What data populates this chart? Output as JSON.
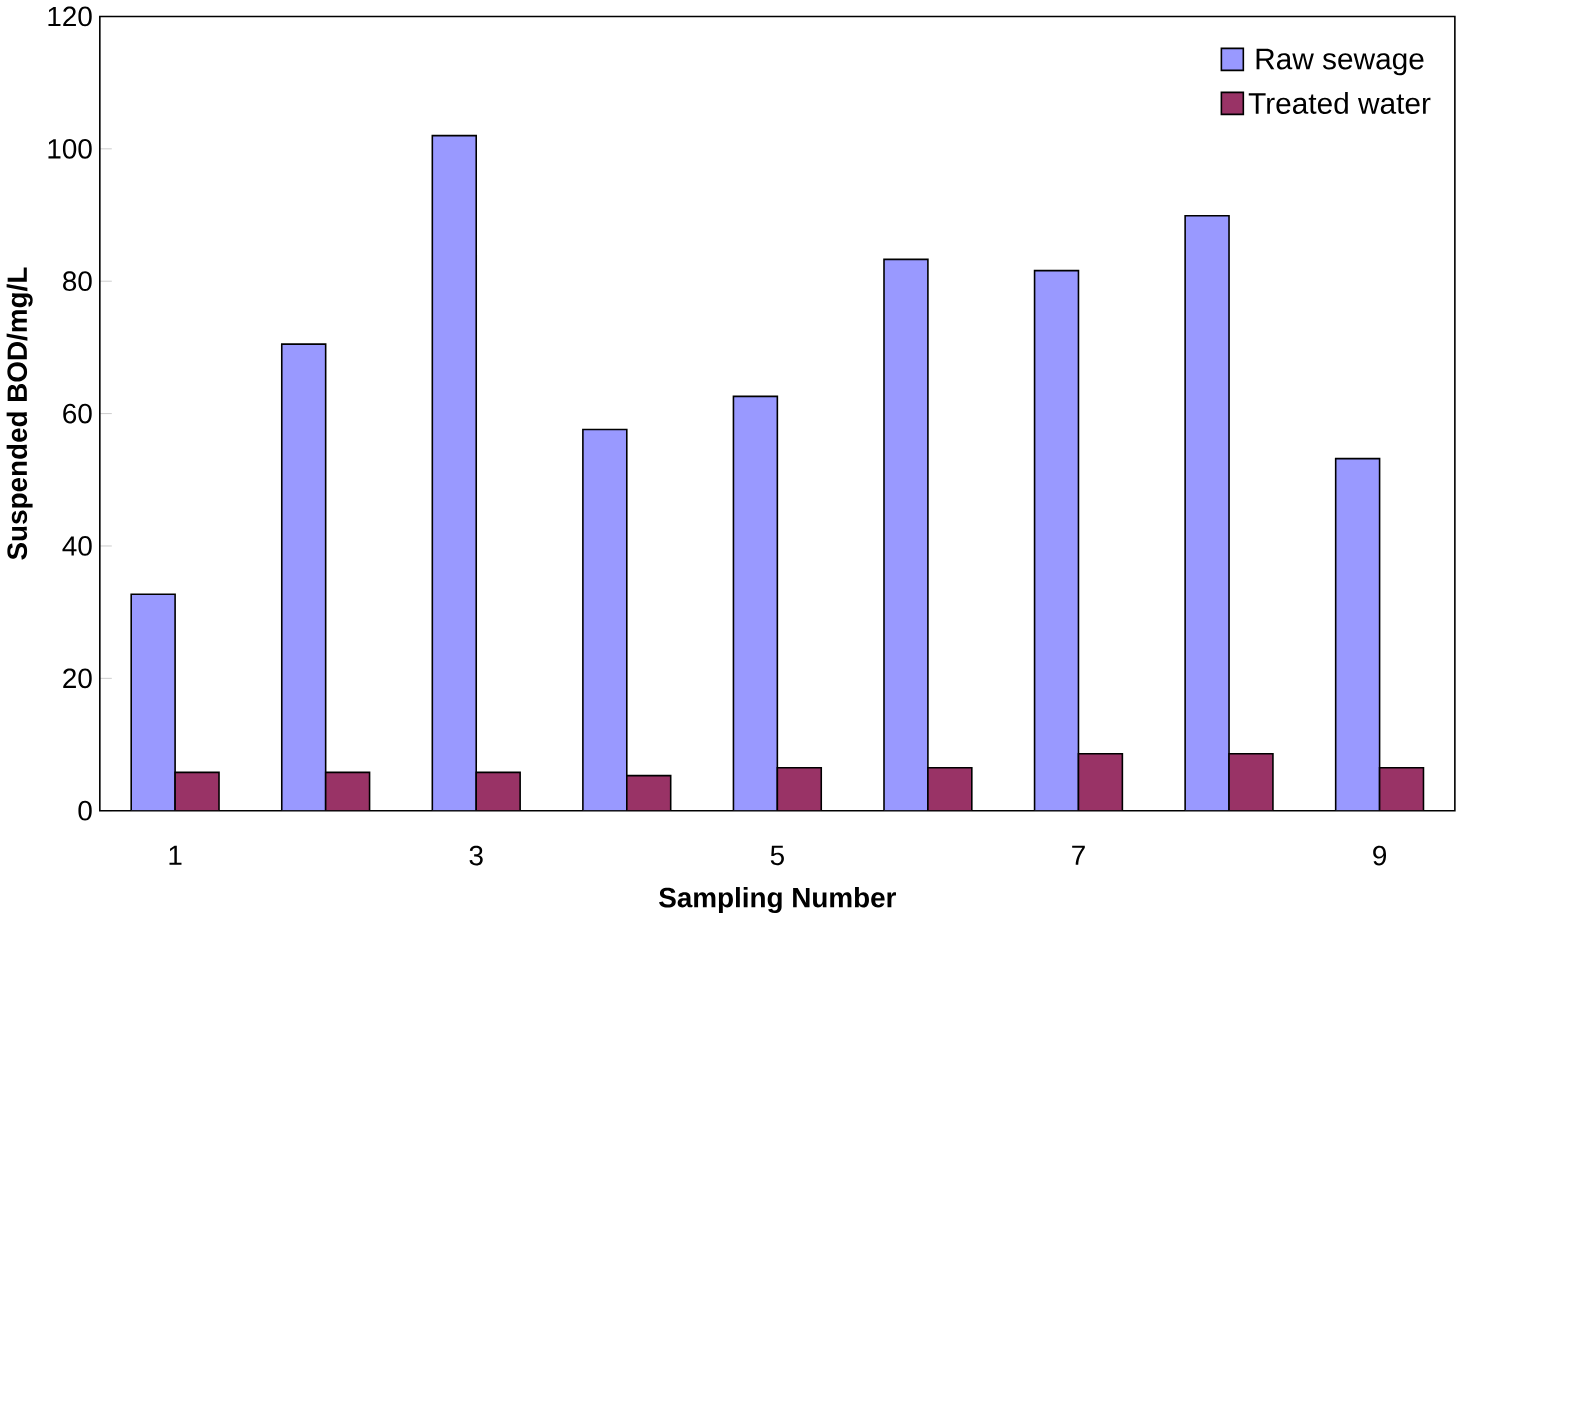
{
  "chart_data": {
    "type": "bar",
    "xlabel": "Sampling Number",
    "ylabel": "Suspended BOD/mg/L",
    "categories": [
      "1",
      null,
      "3",
      null,
      "5",
      null,
      "7",
      null,
      "9"
    ],
    "series": [
      {
        "name": "Raw sewage",
        "color": "#9999ff",
        "values": [
          32.7,
          70.5,
          102,
          57.6,
          62.6,
          83.3,
          81.6,
          89.9,
          53.2
        ]
      },
      {
        "name": "Treated water",
        "color": "#993366",
        "values": [
          5.8,
          5.8,
          5.8,
          5.3,
          6.5,
          6.5,
          8.6,
          8.6,
          6.5
        ]
      }
    ],
    "ylim": [
      0,
      120
    ],
    "yticks": [
      0,
      20,
      40,
      60,
      80,
      100,
      120
    ],
    "grid": false,
    "legend": "top right"
  }
}
